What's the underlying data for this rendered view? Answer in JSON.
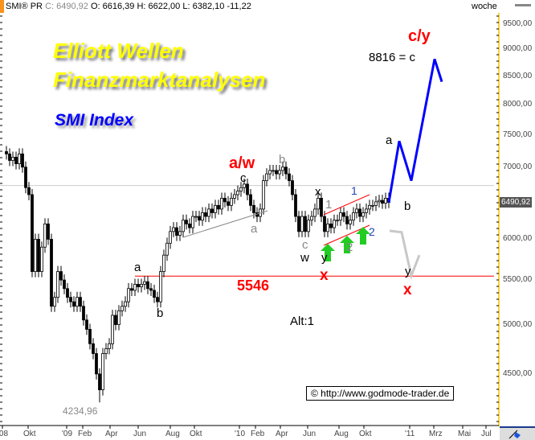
{
  "header": {
    "symbol": "SMI® PR",
    "close_label": "C:",
    "close": "6490,92",
    "open_label": "O:",
    "open": "6616,39",
    "high_label": "H:",
    "high": "6622,00",
    "low_label": "L:",
    "low": "6382,10",
    "change": "-11,22",
    "period": "woche"
  },
  "banner": {
    "line1": "Elliott Wellen",
    "line2": "Finanzmarktanalysen",
    "line3": "SMI Index"
  },
  "colors": {
    "banner_yellow": "#ffff00",
    "banner_blue": "#0000ff",
    "wave_red": "#ff0000",
    "projection_blue": "#0000ff",
    "alt_gray": "#c8c8c8",
    "arrow_green": "#22cc22",
    "axis_yellow": "#f5c400"
  },
  "annotations": {
    "aw": "a/w",
    "c1": "c",
    "b_gray": "b",
    "a_gray": "a",
    "c_gray": "c",
    "w": "w",
    "x1": "x",
    "one_gray": "1",
    "one_blue": "1",
    "y1": "y",
    "two_gray": "2",
    "two_blue": "2",
    "b_right": "b",
    "a_top": "a",
    "cy": "c/y",
    "target": "8816 = c",
    "x_red1": "x",
    "y2": "y",
    "x_red2": "x",
    "level": "5546",
    "a_left": "a",
    "b_left": "b",
    "alt": "Alt:1",
    "low_value": "4234,96",
    "copyright": "© http://www.godmode-trader.de"
  },
  "chart_data": {
    "type": "candlestick",
    "scale": "log",
    "ylim": [
      4200,
      9700
    ],
    "y_ticks": [
      "9500,00",
      "9000,00",
      "8500,00",
      "8000,00",
      "7500,00",
      "7000,00",
      "6000,00",
      "5500,00",
      "5000,00",
      "4500,00"
    ],
    "last_value_label": "6490,92",
    "x_ticks": [
      "'08",
      "Okt",
      "'09",
      "Feb",
      "Apr",
      "Jun",
      "Aug",
      "Okt",
      "'10",
      "Feb",
      "Apr",
      "Jun",
      "Aug",
      "Okt",
      "'11",
      "Mrz",
      "Mai",
      "Jul"
    ],
    "interval": "week",
    "x_start": "2008-08",
    "closes": [
      7200,
      7100,
      7150,
      7050,
      7200,
      7000,
      6700,
      6600,
      5600,
      6000,
      5600,
      5900,
      6200,
      6000,
      5200,
      5300,
      5600,
      5500,
      5400,
      5300,
      5250,
      5200,
      5300,
      5200,
      5050,
      4950,
      4800,
      4700,
      4500,
      4350,
      4700,
      4750,
      4800,
      5100,
      5000,
      5150,
      5200,
      5250,
      5400,
      5380,
      5450,
      5420,
      5450,
      5480,
      5400,
      5380,
      5300,
      5250,
      5600,
      5800,
      5950,
      6100,
      6150,
      6050,
      6100,
      6250,
      6200,
      6150,
      6300,
      6300,
      6250,
      6350,
      6300,
      6400,
      6350,
      6450,
      6400,
      6550,
      6500,
      6450,
      6550,
      6600,
      6650,
      6700,
      6750,
      6600,
      6450,
      6350,
      6300,
      6400,
      6800,
      6900,
      6950,
      6950,
      6900,
      6950,
      7000,
      6900,
      6800,
      6600,
      6300,
      6100,
      6300,
      6100,
      6250,
      6300,
      6400,
      6550,
      6300,
      6100,
      6200,
      6150,
      6250,
      6250,
      6350,
      6300,
      6200,
      6250,
      6350,
      6400,
      6300,
      6350,
      6400,
      6450,
      6450,
      6500,
      6520,
      6480,
      6550,
      6490.92
    ],
    "low_point": 4234.96,
    "support_level": 5546,
    "reference_level": 6730,
    "projection_main": {
      "dates": [
        "2010-12",
        "2011-01",
        "2011-02",
        "2011-04",
        "2011-04"
      ],
      "values": [
        6490,
        7400,
        6800,
        8816,
        8400
      ]
    },
    "projection_alt": {
      "dates": [
        "2010-12",
        "2011-01",
        "2011-02",
        "2011-02"
      ],
      "values": [
        6110,
        6090,
        5550,
        5800
      ]
    }
  }
}
